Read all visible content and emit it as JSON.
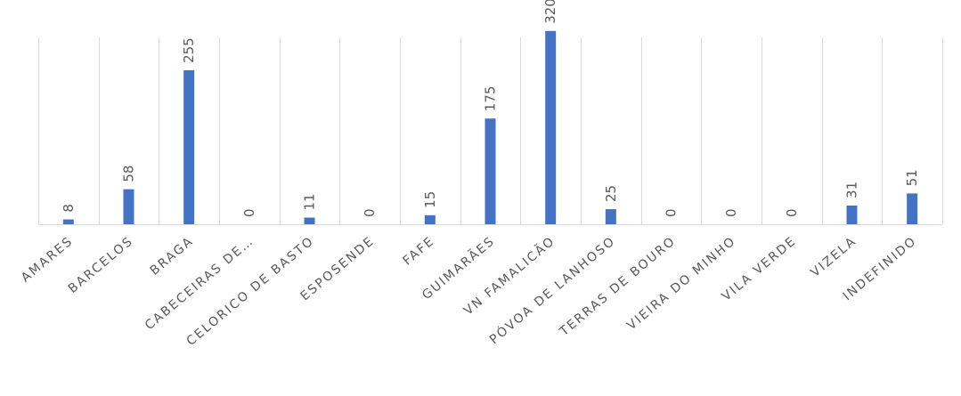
{
  "chart_data": {
    "type": "bar",
    "title": "",
    "xlabel": "",
    "ylabel": "",
    "categories": [
      "AMARES",
      "BARCELOS",
      "BRAGA",
      "CABECEIRAS DE…",
      "CELORICO DE BASTO",
      "ESPOSENDE",
      "FAFE",
      "GUIMARÃES",
      "VN FAMALICÃO",
      "PÓVOA DE LANHOSO",
      "TERRAS DE BOURO",
      "VIEIRA DO MINHO",
      "VILA VERDE",
      "VIZELA",
      "INDEFINIDO"
    ],
    "values": [
      8,
      58,
      255,
      0,
      11,
      0,
      15,
      175,
      320,
      25,
      0,
      0,
      0,
      31,
      51
    ],
    "data_labels": [
      "8",
      "58",
      "255",
      "0",
      "11",
      "0",
      "15",
      "175",
      "320",
      "25",
      "0",
      "0",
      "0",
      "31",
      "51"
    ],
    "ylim": [
      0,
      330
    ],
    "grid": "vertical-category",
    "legend": "none",
    "colors": {
      "bar": "#4472c4",
      "grid": "#d9d9d9",
      "text": "#595959"
    }
  }
}
